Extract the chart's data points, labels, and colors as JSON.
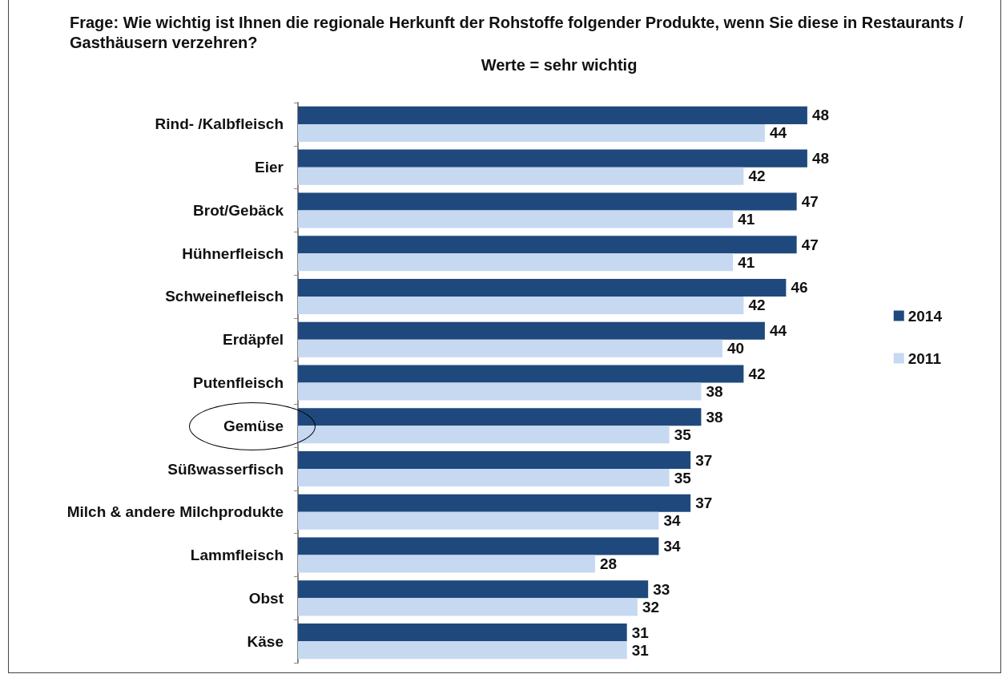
{
  "chart_data": {
    "type": "bar",
    "orientation": "horizontal",
    "title": "Frage: Wie wichtig ist Ihnen die regionale Herkunft der Rohstoffe folgender Produkte, wenn Sie diese in Restaurants / Gasthäusern verzehren?",
    "subtitle": "Werte = sehr wichtig",
    "categories": [
      "Rind- /Kalbfleisch",
      "Eier",
      "Brot/Gebäck",
      "Hühnerfleisch",
      "Schweinefleisch",
      "Erdäpfel",
      "Putenfleisch",
      "Gemüse",
      "Süßwasserfisch",
      "Milch & andere Milchprodukte",
      "Lammfleisch",
      "Obst",
      "Käse"
    ],
    "series": [
      {
        "name": "2014",
        "color": "#1f497d",
        "values": [
          48,
          48,
          47,
          47,
          46,
          44,
          42,
          38,
          37,
          37,
          34,
          33,
          31
        ]
      },
      {
        "name": "2011",
        "color": "#c6d9f1",
        "values": [
          44,
          42,
          41,
          41,
          42,
          40,
          38,
          35,
          35,
          34,
          28,
          32,
          31
        ]
      }
    ],
    "data_labels": true,
    "legend": "right",
    "grid": false
  }
}
